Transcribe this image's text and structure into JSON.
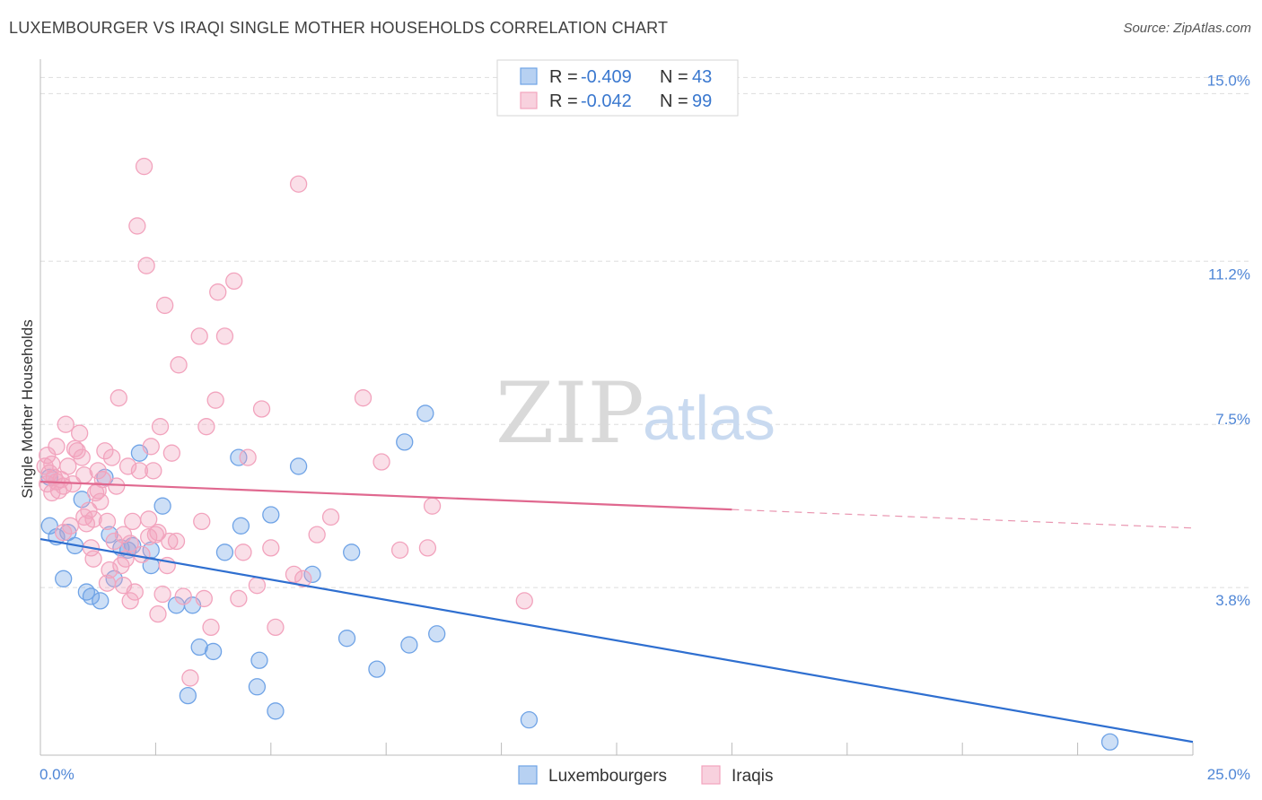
{
  "title": "LUXEMBOURGER VS IRAQI SINGLE MOTHER HOUSEHOLDS CORRELATION CHART",
  "source": "Source: ZipAtlas.com",
  "watermark": {
    "zip": "ZIP",
    "atlas": "atlas"
  },
  "chart_data": {
    "type": "scatter",
    "title": "LUXEMBOURGER VS IRAQI SINGLE MOTHER HOUSEHOLDS CORRELATION CHART",
    "xlabel": "",
    "ylabel": "Single Mother Households",
    "xlim": [
      0,
      25
    ],
    "ylim": [
      0,
      15.7
    ],
    "x_tick_labels": [
      {
        "value": 0,
        "label": "0.0%"
      },
      {
        "value": 25,
        "label": "25.0%"
      }
    ],
    "y_tick_labels": [
      {
        "value": 3.8,
        "label": "3.8%"
      },
      {
        "value": 7.5,
        "label": "7.5%"
      },
      {
        "value": 11.2,
        "label": "11.2%"
      },
      {
        "value": 15.0,
        "label": "15.0%"
      }
    ],
    "stats": [
      {
        "r_label": "R = ",
        "r": "-0.409",
        "n_label": "N = ",
        "n": "43"
      },
      {
        "r_label": "R = ",
        "r": "-0.042",
        "n_label": "N = ",
        "n": "99"
      }
    ],
    "series": [
      {
        "name": "Luxembourgers",
        "color": "#6fa3e6",
        "line_color": "#2f6fd0",
        "trend": {
          "x0": 0,
          "y0": 4.9,
          "x1": 25,
          "y1": 0.3,
          "solid_to": 25
        },
        "points": [
          [
            0.2,
            6.3
          ],
          [
            0.2,
            5.2
          ],
          [
            0.35,
            4.95
          ],
          [
            0.5,
            4.0
          ],
          [
            0.6,
            5.05
          ],
          [
            0.75,
            4.75
          ],
          [
            0.9,
            5.8
          ],
          [
            1.0,
            3.7
          ],
          [
            1.1,
            3.6
          ],
          [
            1.3,
            3.5
          ],
          [
            1.4,
            6.3
          ],
          [
            1.5,
            5.0
          ],
          [
            1.6,
            4.0
          ],
          [
            1.75,
            4.7
          ],
          [
            1.9,
            4.65
          ],
          [
            2.0,
            4.75
          ],
          [
            2.15,
            6.85
          ],
          [
            2.4,
            4.65
          ],
          [
            2.4,
            4.3
          ],
          [
            2.65,
            5.65
          ],
          [
            2.95,
            3.4
          ],
          [
            3.2,
            1.35
          ],
          [
            3.3,
            3.4
          ],
          [
            3.45,
            2.45
          ],
          [
            3.75,
            2.35
          ],
          [
            4.0,
            4.6
          ],
          [
            4.3,
            6.75
          ],
          [
            4.35,
            5.2
          ],
          [
            4.7,
            1.55
          ],
          [
            4.75,
            2.15
          ],
          [
            5.0,
            5.45
          ],
          [
            5.1,
            1.0
          ],
          [
            5.6,
            6.55
          ],
          [
            5.9,
            4.1
          ],
          [
            6.65,
            2.65
          ],
          [
            6.75,
            4.6
          ],
          [
            7.3,
            1.95
          ],
          [
            7.9,
            7.1
          ],
          [
            8.0,
            2.5
          ],
          [
            8.35,
            7.75
          ],
          [
            8.6,
            2.75
          ],
          [
            10.6,
            0.8
          ],
          [
            23.2,
            0.3
          ]
        ]
      },
      {
        "name": "Iraqis",
        "color": "#f2a3bd",
        "line_color": "#e0688f",
        "trend": {
          "x0": 0,
          "y0": 6.2,
          "x1": 25,
          "y1": 5.15,
          "solid_to": 15
        },
        "points": [
          [
            0.1,
            6.55
          ],
          [
            0.15,
            6.8
          ],
          [
            0.2,
            6.4
          ],
          [
            0.25,
            6.6
          ],
          [
            0.3,
            6.3
          ],
          [
            0.35,
            6.2
          ],
          [
            0.4,
            6.0
          ],
          [
            0.45,
            6.25
          ],
          [
            0.5,
            6.1
          ],
          [
            0.55,
            7.5
          ],
          [
            0.6,
            6.55
          ],
          [
            0.65,
            5.2
          ],
          [
            0.7,
            6.15
          ],
          [
            0.8,
            6.9
          ],
          [
            0.85,
            7.3
          ],
          [
            0.9,
            6.75
          ],
          [
            0.95,
            6.35
          ],
          [
            1.0,
            5.25
          ],
          [
            1.05,
            5.55
          ],
          [
            1.1,
            4.7
          ],
          [
            1.15,
            4.45
          ],
          [
            1.2,
            5.95
          ],
          [
            1.25,
            6.45
          ],
          [
            1.3,
            5.75
          ],
          [
            1.35,
            6.25
          ],
          [
            1.4,
            6.9
          ],
          [
            1.45,
            5.3
          ],
          [
            1.5,
            4.2
          ],
          [
            1.55,
            6.75
          ],
          [
            1.6,
            4.85
          ],
          [
            1.65,
            6.1
          ],
          [
            1.7,
            8.1
          ],
          [
            1.75,
            4.3
          ],
          [
            1.8,
            5.0
          ],
          [
            1.85,
            4.45
          ],
          [
            1.9,
            6.55
          ],
          [
            1.95,
            3.5
          ],
          [
            2.0,
            5.3
          ],
          [
            2.05,
            3.7
          ],
          [
            2.1,
            12.0
          ],
          [
            2.15,
            6.45
          ],
          [
            2.2,
            4.55
          ],
          [
            2.25,
            13.35
          ],
          [
            2.3,
            11.1
          ],
          [
            2.35,
            4.95
          ],
          [
            2.4,
            7.0
          ],
          [
            2.45,
            6.45
          ],
          [
            2.5,
            5.0
          ],
          [
            2.55,
            3.2
          ],
          [
            2.6,
            7.45
          ],
          [
            2.65,
            3.65
          ],
          [
            2.7,
            10.2
          ],
          [
            2.75,
            4.3
          ],
          [
            2.8,
            4.85
          ],
          [
            2.85,
            6.85
          ],
          [
            3.0,
            8.85
          ],
          [
            3.1,
            3.6
          ],
          [
            3.25,
            1.75
          ],
          [
            3.5,
            5.3
          ],
          [
            3.55,
            3.55
          ],
          [
            3.6,
            7.45
          ],
          [
            3.7,
            2.9
          ],
          [
            3.8,
            8.05
          ],
          [
            3.85,
            10.5
          ],
          [
            4.0,
            9.5
          ],
          [
            4.2,
            10.75
          ],
          [
            4.3,
            3.55
          ],
          [
            4.4,
            4.6
          ],
          [
            4.5,
            6.75
          ],
          [
            4.7,
            3.85
          ],
          [
            4.8,
            7.85
          ],
          [
            5.0,
            4.7
          ],
          [
            5.1,
            2.9
          ],
          [
            5.5,
            4.1
          ],
          [
            5.6,
            12.95
          ],
          [
            5.7,
            4.0
          ],
          [
            6.0,
            5.0
          ],
          [
            6.3,
            5.4
          ],
          [
            7.0,
            8.1
          ],
          [
            7.4,
            6.65
          ],
          [
            7.8,
            4.65
          ],
          [
            8.4,
            4.7
          ],
          [
            8.5,
            5.65
          ],
          [
            10.5,
            3.5
          ],
          [
            0.25,
            5.95
          ],
          [
            0.5,
            5.05
          ],
          [
            0.75,
            6.95
          ],
          [
            1.15,
            5.35
          ],
          [
            1.95,
            4.8
          ],
          [
            2.35,
            5.35
          ],
          [
            3.45,
            9.5
          ],
          [
            1.45,
            3.9
          ],
          [
            2.55,
            5.05
          ],
          [
            0.15,
            6.15
          ],
          [
            0.95,
            5.4
          ],
          [
            1.25,
            6.0
          ],
          [
            1.8,
            3.85
          ],
          [
            2.95,
            4.85
          ],
          [
            0.35,
            7.0
          ]
        ]
      }
    ],
    "legend": [
      {
        "label": "Luxembourgers",
        "color": "#6fa3e6"
      },
      {
        "label": "Iraqis",
        "color": "#f2a3bd"
      }
    ],
    "legend_position": "bottom-center"
  }
}
